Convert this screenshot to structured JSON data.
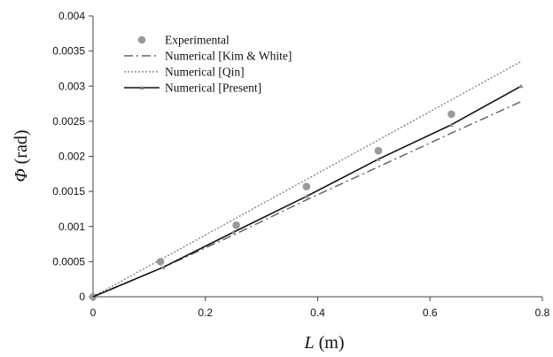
{
  "chart_data": {
    "type": "line",
    "xlabel_symbol": "L",
    "xlabel_unit": " (m)",
    "ylabel_symbol": "Φ",
    "ylabel_unit": " (rad)",
    "xlim": [
      0,
      0.8
    ],
    "ylim": [
      0,
      0.004
    ],
    "x_ticks": [
      "0",
      "0.2",
      "0.4",
      "0.6",
      "0.8"
    ],
    "y_ticks": [
      "0",
      "0.0005",
      "0.001",
      "0.0015",
      "0.002",
      "0.0025",
      "0.003",
      "0.0035",
      "0.004"
    ],
    "grid": false,
    "legend_position": "top-left",
    "series": [
      {
        "name": "Experimental",
        "style": "markers",
        "color": "#9a9a9a",
        "points": [
          [
            0,
            0
          ],
          [
            0.12,
            0.0005
          ],
          [
            0.255,
            0.00102
          ],
          [
            0.38,
            0.00157
          ],
          [
            0.508,
            0.00208
          ],
          [
            0.638,
            0.0026
          ]
        ]
      },
      {
        "name": "Numerical [Kim & White]",
        "style": "dash-dot",
        "color": "#666666",
        "points": [
          [
            0,
            0
          ],
          [
            0.125,
            0.00042
          ],
          [
            0.25,
            0.00088
          ],
          [
            0.38,
            0.00138
          ],
          [
            0.508,
            0.00185
          ],
          [
            0.638,
            0.00233
          ],
          [
            0.762,
            0.00278
          ]
        ]
      },
      {
        "name": "Numerical [Qin]",
        "style": "dotted",
        "color": "#8a8a8a",
        "points": [
          [
            0,
            0
          ],
          [
            0.762,
            0.00335
          ]
        ]
      },
      {
        "name": "Numerical [Present]",
        "style": "solid",
        "color": "#111111",
        "points": [
          [
            0,
            0
          ],
          [
            0.125,
            0.00042
          ],
          [
            0.25,
            0.00092
          ],
          [
            0.38,
            0.00143
          ],
          [
            0.508,
            0.00196
          ],
          [
            0.638,
            0.00245
          ],
          [
            0.762,
            0.003
          ]
        ]
      }
    ]
  }
}
